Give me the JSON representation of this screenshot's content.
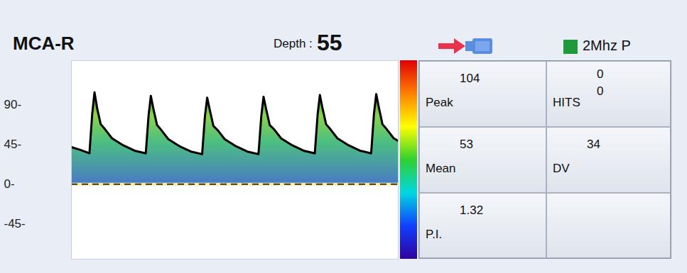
{
  "header": {
    "vessel": "MCA-R",
    "depth_label": "Depth :",
    "depth": 55,
    "probe": "2Mhz P"
  },
  "chart_data": {
    "type": "area",
    "color": "#000000",
    "x": [
      0,
      0.15,
      0.32,
      0.37,
      0.41,
      0.46,
      0.52,
      0.6,
      0.72,
      0.92,
      1.12,
      1.32,
      1.37,
      1.41,
      1.46,
      1.52,
      1.6,
      1.72,
      1.92,
      2.12,
      2.32,
      2.37,
      2.41,
      2.46,
      2.52,
      2.6,
      2.72,
      2.92,
      3.12,
      3.32,
      3.37,
      3.41,
      3.46,
      3.52,
      3.6,
      3.72,
      3.92,
      4.12,
      4.32,
      4.37,
      4.41,
      4.46,
      4.52,
      4.6,
      4.72,
      4.92,
      5.12,
      5.32,
      5.37,
      5.41,
      5.46,
      5.52,
      5.6,
      5.72,
      5.8
    ],
    "values": [
      42,
      39,
      35,
      80,
      104,
      85,
      68,
      62,
      52,
      44,
      38,
      35,
      78,
      100,
      84,
      67,
      61,
      51,
      43,
      37,
      34,
      77,
      98,
      83,
      66,
      61,
      51,
      43,
      37,
      34,
      77,
      99,
      84,
      67,
      62,
      52,
      44,
      38,
      35,
      79,
      101,
      85,
      68,
      62,
      52,
      44,
      38,
      35,
      80,
      102,
      86,
      68,
      62,
      52,
      49
    ],
    "baseline": 0,
    "xlim": [
      0,
      5.8
    ],
    "ylim": [
      -85,
      140
    ],
    "yticks": [
      {
        "value": 90,
        "label": "90-"
      },
      {
        "value": 45,
        "label": "45-"
      },
      {
        "value": 0,
        "label": "0-"
      },
      {
        "value": -45,
        "label": "-45-"
      }
    ],
    "tick_labels": "y"
  },
  "panel": [
    [
      {
        "label": "Peak",
        "value": 104
      },
      {
        "label": "HITS",
        "values": [
          0,
          0
        ]
      }
    ],
    [
      {
        "label": "Mean",
        "value": 53
      },
      {
        "label": "DV",
        "value": 34
      }
    ],
    [
      {
        "label": "P.I.",
        "value": 1.32
      },
      null
    ]
  ]
}
